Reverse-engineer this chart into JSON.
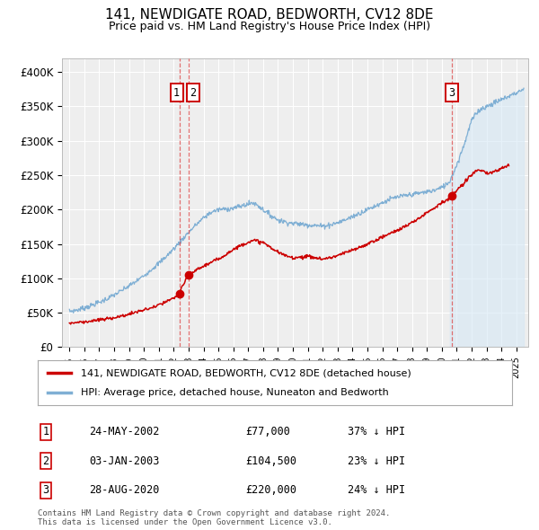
{
  "title": "141, NEWDIGATE ROAD, BEDWORTH, CV12 8DE",
  "subtitle": "Price paid vs. HM Land Registry's House Price Index (HPI)",
  "ylim": [
    0,
    420000
  ],
  "yticks": [
    0,
    50000,
    100000,
    150000,
    200000,
    250000,
    300000,
    350000,
    400000
  ],
  "ytick_labels": [
    "£0",
    "£50K",
    "£100K",
    "£150K",
    "£200K",
    "£250K",
    "£300K",
    "£350K",
    "£400K"
  ],
  "background_color": "#ffffff",
  "plot_bg_color": "#eeeeee",
  "grid_color": "#ffffff",
  "red_line_color": "#cc0000",
  "blue_line_color": "#7fafd4",
  "blue_fill_color": "#d6e8f5",
  "legend_red_label": "141, NEWDIGATE ROAD, BEDWORTH, CV12 8DE (detached house)",
  "legend_blue_label": "HPI: Average price, detached house, Nuneaton and Bedworth",
  "sale1_date": "24-MAY-2002",
  "sale1_price": 77000,
  "sale1_hpi": "37% ↓ HPI",
  "sale1_x": 2002.38,
  "sale2_date": "03-JAN-2003",
  "sale2_price": 104500,
  "sale2_hpi": "23% ↓ HPI",
  "sale2_x": 2003.01,
  "sale3_date": "28-AUG-2020",
  "sale3_price": 220000,
  "sale3_hpi": "24% ↓ HPI",
  "sale3_x": 2020.66,
  "footer1": "Contains HM Land Registry data © Crown copyright and database right 2024.",
  "footer2": "This data is licensed under the Open Government Licence v3.0.",
  "xlim_start": 1994.5,
  "xlim_end": 2025.8,
  "hpi_years": [
    1995.0,
    1995.5,
    1996.0,
    1996.5,
    1997.0,
    1997.5,
    1998.0,
    1998.5,
    1999.0,
    1999.5,
    2000.0,
    2000.5,
    2001.0,
    2001.5,
    2002.0,
    2002.5,
    2003.0,
    2003.5,
    2004.0,
    2004.5,
    2005.0,
    2005.5,
    2006.0,
    2006.5,
    2007.0,
    2007.3,
    2007.6,
    2008.0,
    2008.5,
    2009.0,
    2009.5,
    2010.0,
    2010.5,
    2011.0,
    2011.5,
    2012.0,
    2012.5,
    2013.0,
    2013.5,
    2014.0,
    2014.5,
    2015.0,
    2015.5,
    2016.0,
    2016.5,
    2017.0,
    2017.5,
    2018.0,
    2018.5,
    2019.0,
    2019.5,
    2020.0,
    2020.5,
    2021.0,
    2021.5,
    2022.0,
    2022.5,
    2023.0,
    2023.5,
    2024.0,
    2024.5,
    2025.0,
    2025.5
  ],
  "hpi_values": [
    52000,
    54000,
    57000,
    61000,
    65000,
    70000,
    76000,
    82000,
    89000,
    96000,
    104000,
    113000,
    122000,
    132000,
    143000,
    155000,
    167000,
    178000,
    188000,
    196000,
    200000,
    201000,
    202000,
    205000,
    208000,
    210000,
    207000,
    200000,
    192000,
    185000,
    182000,
    180000,
    179000,
    178000,
    177000,
    176000,
    178000,
    181000,
    185000,
    190000,
    195000,
    200000,
    205000,
    210000,
    215000,
    218000,
    220000,
    222000,
    224000,
    226000,
    228000,
    232000,
    240000,
    265000,
    295000,
    330000,
    345000,
    350000,
    355000,
    360000,
    365000,
    370000,
    375000
  ],
  "red_years": [
    1995.0,
    1995.5,
    1996.0,
    1996.5,
    1997.0,
    1997.5,
    1998.0,
    1998.5,
    1999.0,
    1999.5,
    2000.0,
    2000.5,
    2001.0,
    2001.5,
    2002.0,
    2002.38,
    2002.5,
    2003.01,
    2003.5,
    2004.0,
    2004.5,
    2005.0,
    2005.5,
    2006.0,
    2006.5,
    2007.0,
    2007.5,
    2008.0,
    2008.5,
    2009.0,
    2009.5,
    2010.0,
    2010.5,
    2011.0,
    2011.5,
    2012.0,
    2012.5,
    2013.0,
    2013.5,
    2014.0,
    2014.5,
    2015.0,
    2015.5,
    2016.0,
    2016.5,
    2017.0,
    2017.5,
    2018.0,
    2018.5,
    2019.0,
    2019.5,
    2020.0,
    2020.5,
    2020.66,
    2021.0,
    2021.5,
    2022.0,
    2022.5,
    2023.0,
    2023.5,
    2024.0,
    2024.5
  ],
  "red_values": [
    35000,
    36000,
    37000,
    38000,
    39500,
    41000,
    43000,
    45000,
    48000,
    51000,
    54000,
    57000,
    61000,
    66000,
    71000,
    77000,
    85000,
    104500,
    112000,
    118000,
    123000,
    128000,
    135000,
    142000,
    148000,
    153000,
    155000,
    152000,
    145000,
    138000,
    133000,
    130000,
    131000,
    132000,
    130000,
    128000,
    130000,
    133000,
    137000,
    141000,
    145000,
    150000,
    155000,
    160000,
    165000,
    170000,
    175000,
    181000,
    188000,
    196000,
    203000,
    210000,
    216000,
    220000,
    228000,
    238000,
    252000,
    258000,
    252000,
    255000,
    260000,
    264000
  ]
}
